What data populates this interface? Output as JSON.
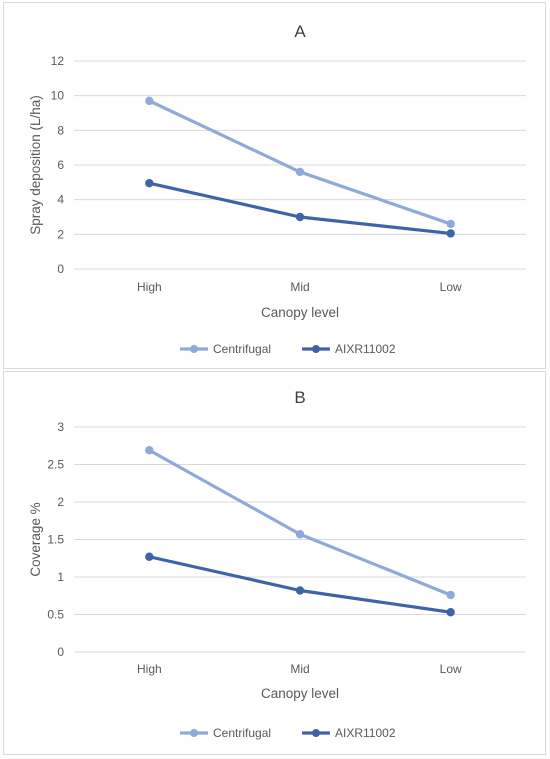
{
  "chart_data": [
    {
      "type": "line",
      "title": "A",
      "xlabel": "Canopy level",
      "ylabel": "Spray deposition (L/ha)",
      "categories": [
        "High",
        "Mid",
        "Low"
      ],
      "ylim": [
        0,
        12
      ],
      "yticks": [
        0,
        2,
        4,
        6,
        8,
        10,
        12
      ],
      "grid": true,
      "legend": "bottom",
      "series": [
        {
          "name": "Centrifugal",
          "values": [
            9.7,
            5.6,
            2.6
          ],
          "color": "#8fa9d9"
        },
        {
          "name": "AIXR11002",
          "values": [
            4.95,
            3.0,
            2.05
          ],
          "color": "#3f63a8"
        }
      ]
    },
    {
      "type": "line",
      "title": "B",
      "xlabel": "Canopy level",
      "ylabel": "Coverage %",
      "categories": [
        "High",
        "Mid",
        "Low"
      ],
      "ylim": [
        0,
        3
      ],
      "yticks": [
        "0",
        "0.5",
        "1",
        "1.5",
        "2",
        "2.5",
        "3"
      ],
      "grid": true,
      "legend": "bottom",
      "series": [
        {
          "name": "Centrifugal",
          "values": [
            2.69,
            1.57,
            0.76
          ],
          "color": "#8fa9d9"
        },
        {
          "name": "AIXR11002",
          "values": [
            1.27,
            0.82,
            0.53
          ],
          "color": "#3f63a8"
        }
      ]
    }
  ]
}
